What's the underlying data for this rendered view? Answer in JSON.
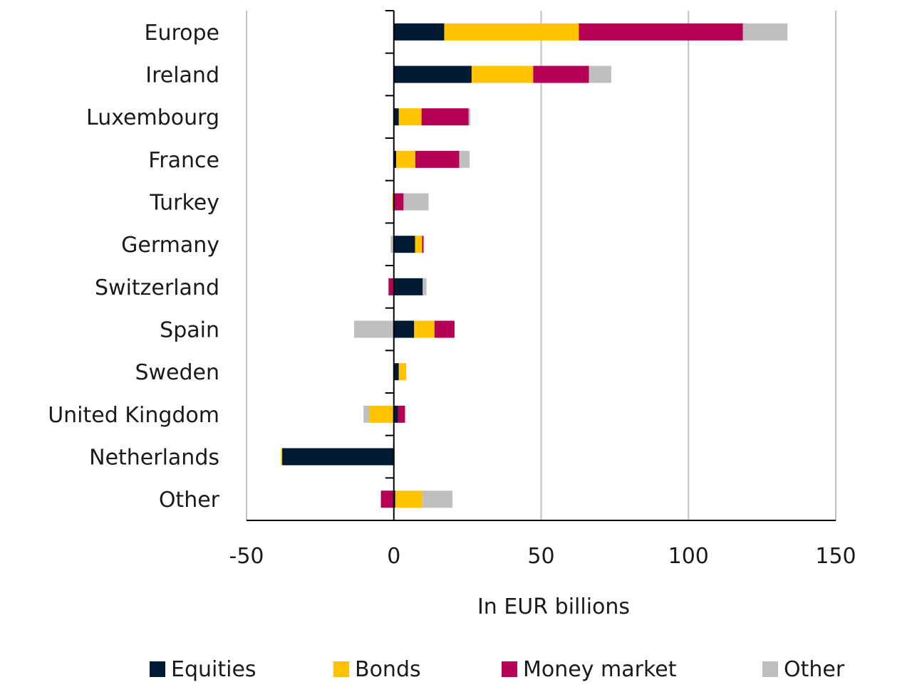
{
  "chart_data": {
    "type": "bar",
    "orientation": "horizontal",
    "stacked": true,
    "title": "",
    "xlabel": "In EUR billions",
    "ylabel": "",
    "xlim": [
      -50,
      150
    ],
    "xticks": [
      -50,
      0,
      50,
      100,
      150
    ],
    "xtick_labels": [
      "-50",
      "0",
      "50",
      "100",
      "150"
    ],
    "grid": true,
    "legend_position": "bottom",
    "categories": [
      "Europe",
      "Ireland",
      "Luxembourg",
      "France",
      "Turkey",
      "Germany",
      "Switzerland",
      "Spain",
      "Sweden",
      "United Kingdom",
      "Netherlands",
      "Other"
    ],
    "series": [
      {
        "name": "Equities",
        "color": "#001a33",
        "values": [
          17.1,
          26.4,
          1.7,
          0.8,
          0.0,
          7.2,
          9.8,
          6.9,
          1.7,
          1.4,
          -37.9,
          0.5
        ]
      },
      {
        "name": "Bonds",
        "color": "#ffc300",
        "values": [
          45.7,
          20.9,
          7.7,
          6.5,
          -0.5,
          2.4,
          0.0,
          6.9,
          2.5,
          -8.3,
          -0.4,
          9.2
        ]
      },
      {
        "name": "Money market",
        "color": "#b60055",
        "values": [
          55.7,
          18.9,
          16.0,
          14.9,
          3.3,
          0.5,
          -1.8,
          6.8,
          0.0,
          2.4,
          0.0,
          -4.4
        ]
      },
      {
        "name": "Other",
        "color": "#bfbfbf",
        "values": [
          15.1,
          7.6,
          0.6,
          3.5,
          8.5,
          -1.1,
          1.3,
          -13.5,
          0.0,
          -2.0,
          0.3,
          10.2
        ]
      }
    ]
  }
}
